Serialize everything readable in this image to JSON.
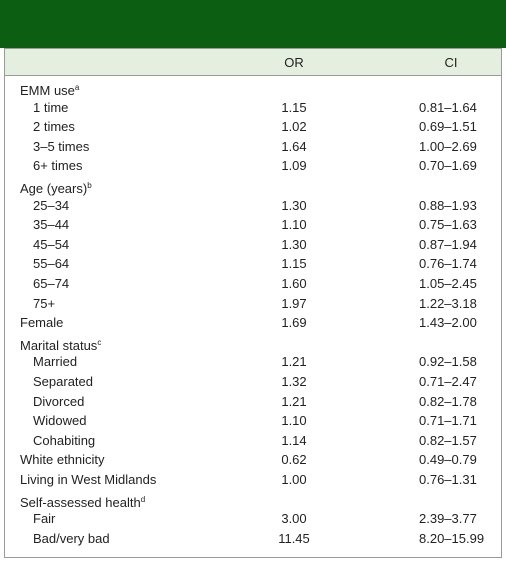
{
  "table": {
    "columns": [
      "OR",
      "CI"
    ],
    "rows": [
      {
        "label": "EMM use",
        "note": "a",
        "rows": [
          {
            "label": "1 time",
            "or": "1.15",
            "ci": "0.81–1.64"
          },
          {
            "label": "2 times",
            "or": "1.02",
            "ci": "0.69–1.51"
          },
          {
            "label": "3–5 times",
            "or": "1.64",
            "ci": "1.00–2.69"
          },
          {
            "label": "6+ times",
            "or": "1.09",
            "ci": "0.70–1.69"
          }
        ]
      },
      {
        "label": "Age (years)",
        "note": "b",
        "rows": [
          {
            "label": "25–34",
            "or": "1.30",
            "ci": "0.88–1.93"
          },
          {
            "label": "35–44",
            "or": "1.10",
            "ci": "0.75–1.63"
          },
          {
            "label": "45–54",
            "or": "1.30",
            "ci": "0.87–1.94"
          },
          {
            "label": "55–64",
            "or": "1.15",
            "ci": "0.76–1.74"
          },
          {
            "label": "65–74",
            "or": "1.60",
            "ci": "1.05–2.45"
          },
          {
            "label": "75+",
            "or": "1.97",
            "ci": "1.22–3.18"
          }
        ]
      },
      {
        "label": "Female",
        "or": "1.69",
        "ci": "1.43–2.00"
      },
      {
        "label": "Marital status",
        "note": "c",
        "rows": [
          {
            "label": "Married",
            "or": "1.21",
            "ci": "0.92–1.58"
          },
          {
            "label": "Separated",
            "or": "1.32",
            "ci": "0.71–2.47"
          },
          {
            "label": "Divorced",
            "or": "1.21",
            "ci": "0.82–1.78"
          },
          {
            "label": "Widowed",
            "or": "1.10",
            "ci": "0.71–1.71"
          },
          {
            "label": "Cohabiting",
            "or": "1.14",
            "ci": "0.82–1.57"
          }
        ]
      },
      {
        "label": "White ethnicity",
        "or": "0.62",
        "ci": "0.49–0.79"
      },
      {
        "label": "Living in West Midlands",
        "or": "1.00",
        "ci": "0.76–1.31"
      },
      {
        "label": "Self-assessed health",
        "note": "d",
        "rows": [
          {
            "label": "Fair",
            "or": "3.00",
            "ci": "2.39–3.77"
          },
          {
            "label": "Bad/very bad",
            "or": "11.45",
            "ci": "8.20–15.99"
          }
        ]
      }
    ]
  }
}
